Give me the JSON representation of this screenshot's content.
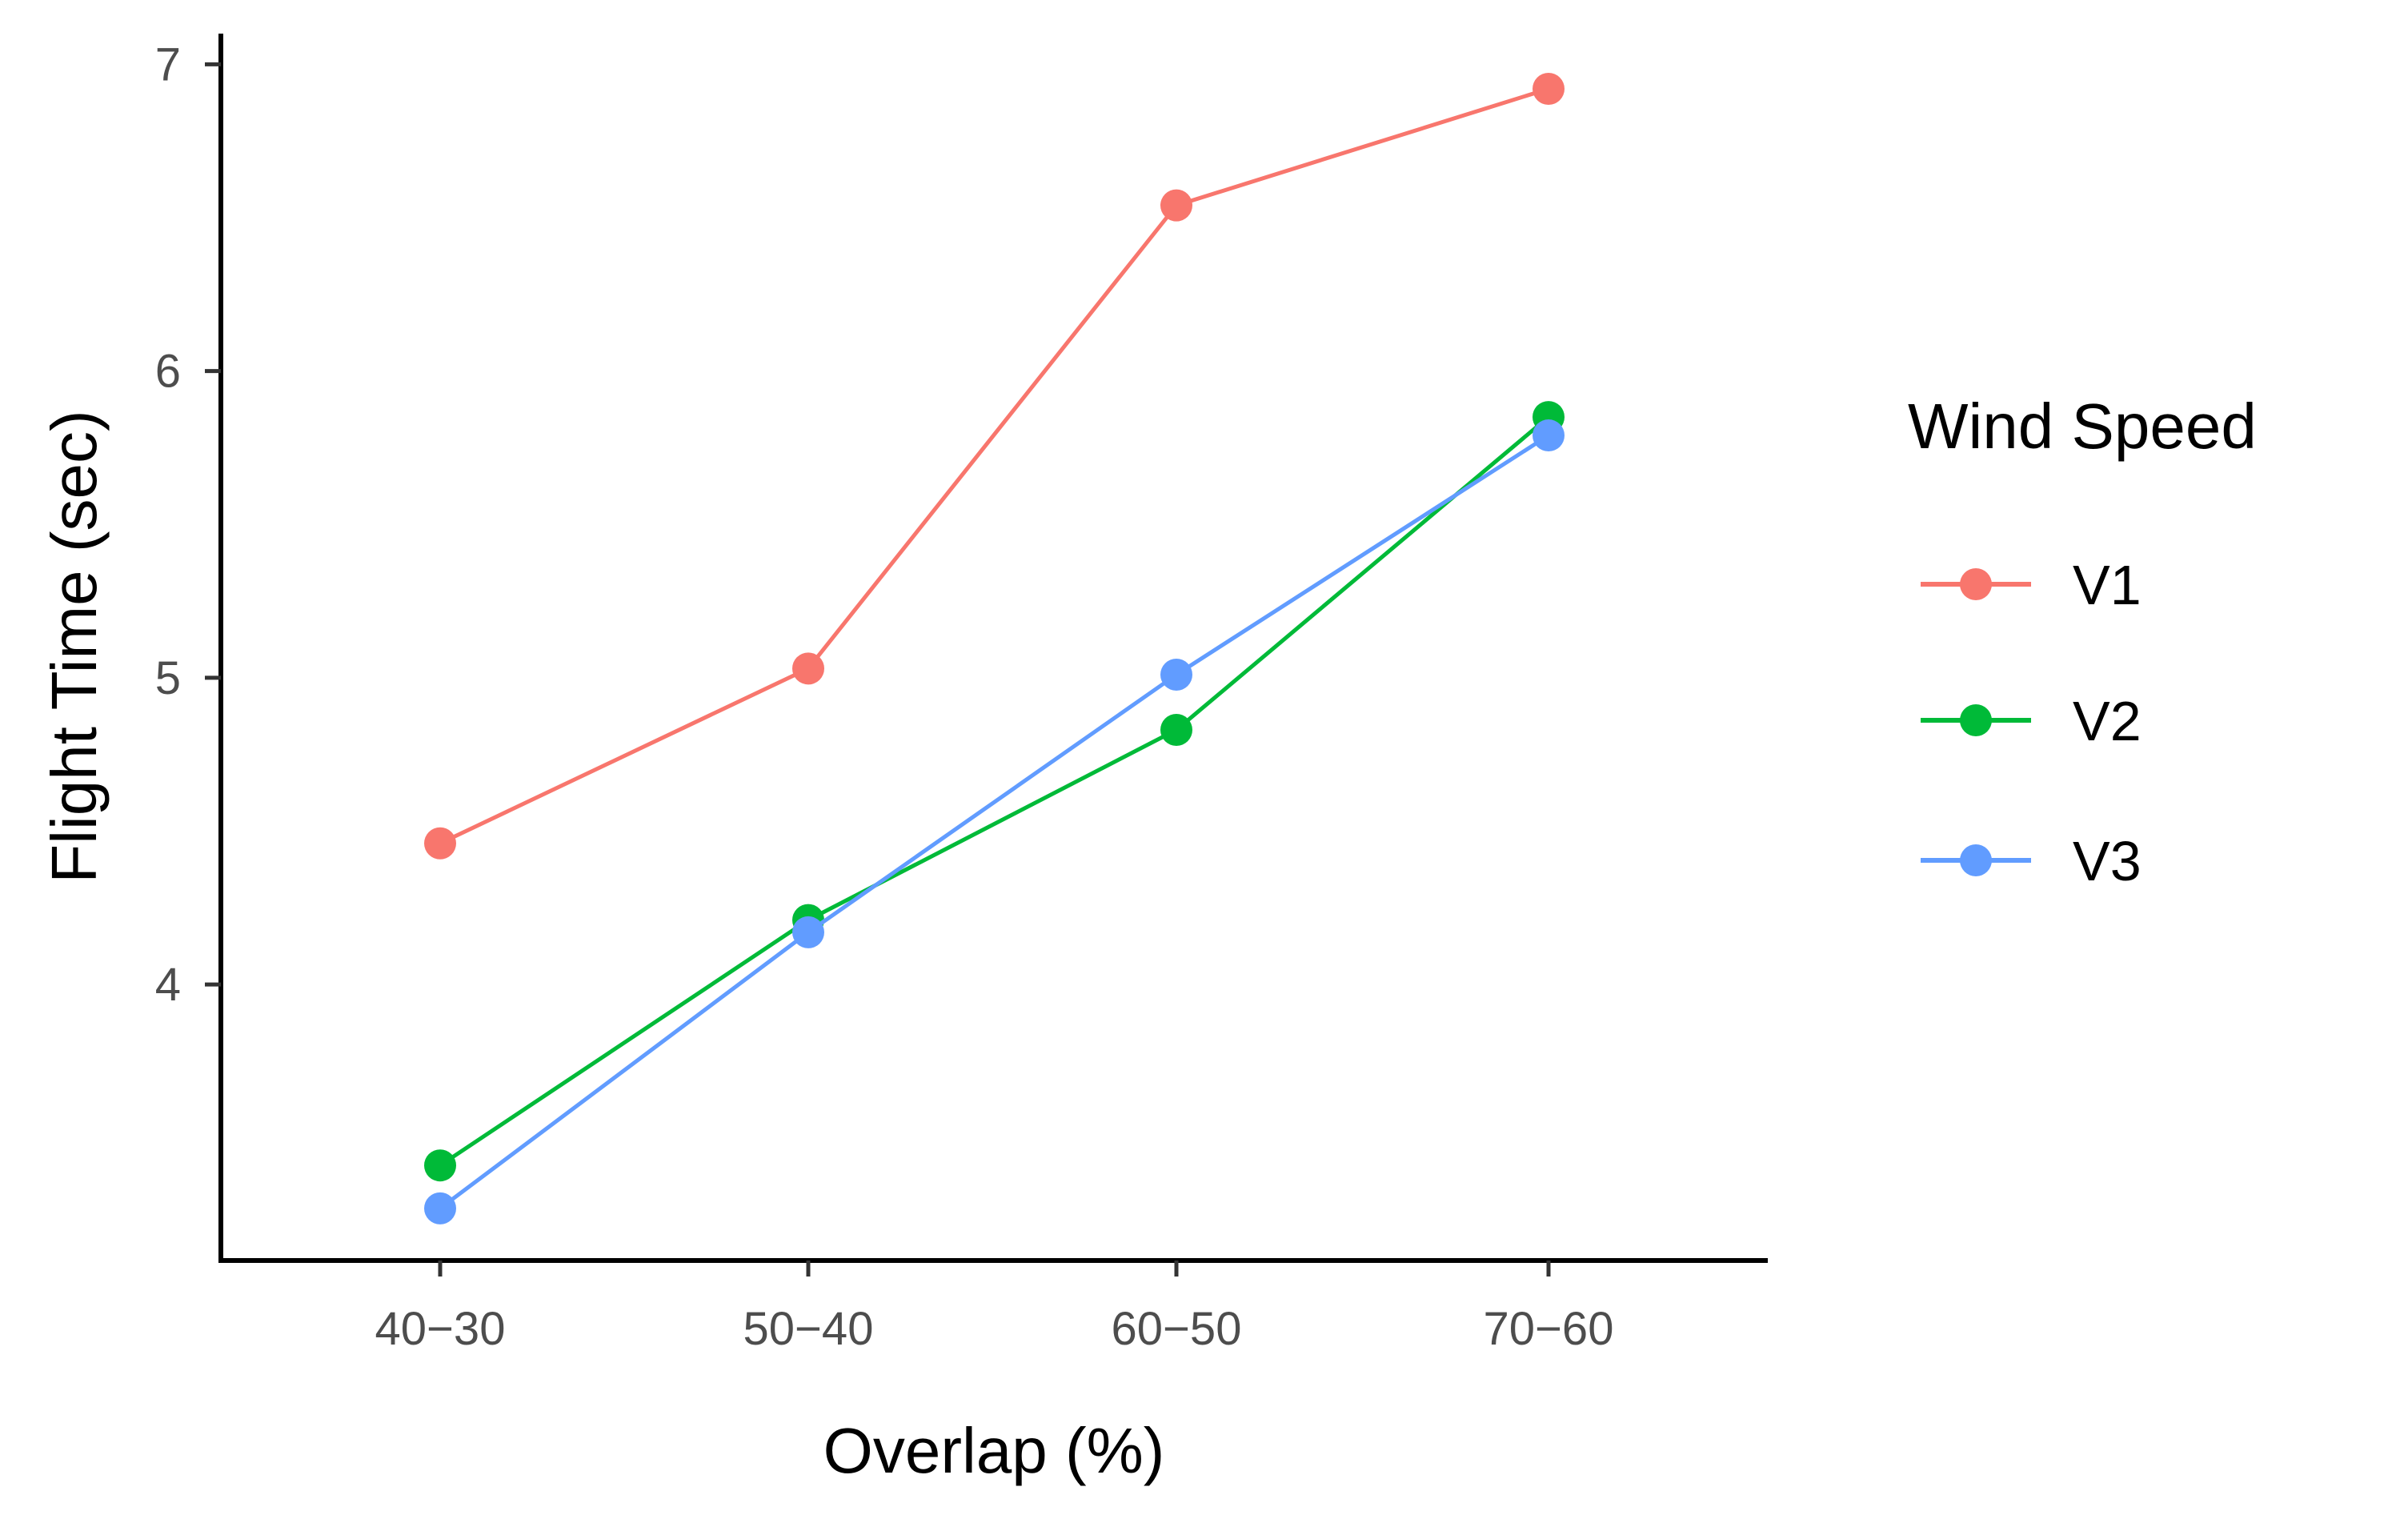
{
  "chart_data": {
    "type": "line",
    "title": "",
    "xlabel": "Overlap (%)",
    "ylabel": "Flight Time (sec)",
    "categories": [
      "40−30",
      "50−40",
      "60−50",
      "70−60"
    ],
    "ylim": [
      3.1,
      7.1
    ],
    "yticks": [
      4,
      5,
      6,
      7
    ],
    "grid": false,
    "legend": {
      "title": "Wind Speed",
      "position": "right"
    },
    "series": [
      {
        "name": "V1",
        "color": "#F8766D",
        "values": [
          4.46,
          5.03,
          6.54,
          6.92
        ]
      },
      {
        "name": "V2",
        "color": "#00BA38",
        "values": [
          3.41,
          4.21,
          4.83,
          5.85
        ]
      },
      {
        "name": "V3",
        "color": "#619CFF",
        "values": [
          3.27,
          4.17,
          5.01,
          5.79
        ]
      }
    ]
  }
}
